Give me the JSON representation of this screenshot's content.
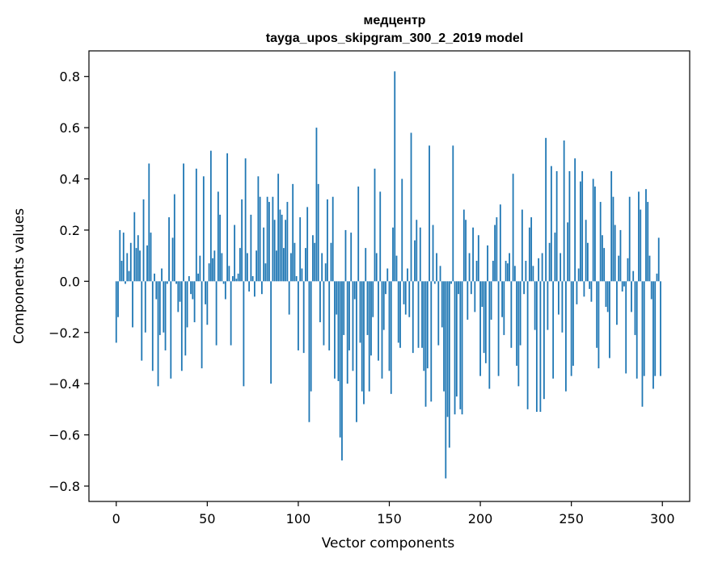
{
  "chart_data": {
    "type": "bar",
    "title": "медцентр",
    "subtitle": "tayga_upos_skipgram_300_2_2019 model",
    "xlabel": "Vector components",
    "ylabel": "Components values",
    "xlim": [
      -15,
      315
    ],
    "ylim": [
      -0.86,
      0.9
    ],
    "xticks": [
      0,
      50,
      100,
      150,
      200,
      250,
      300
    ],
    "xtick_labels": [
      "0",
      "50",
      "100",
      "150",
      "200",
      "250",
      "300"
    ],
    "yticks": [
      -0.8,
      -0.6,
      -0.4,
      -0.2,
      0.0,
      0.2,
      0.4,
      0.6,
      0.8
    ],
    "ytick_labels": [
      "−0.8",
      "−0.6",
      "−0.4",
      "−0.2",
      "0.0",
      "0.2",
      "0.4",
      "0.6",
      "0.8"
    ],
    "bar_color": "#1f77b4",
    "grid": false,
    "values": [
      -0.24,
      -0.14,
      0.2,
      0.08,
      0.19,
      -0.01,
      0.11,
      0.04,
      0.15,
      -0.18,
      0.27,
      0.13,
      0.18,
      0.12,
      -0.31,
      0.32,
      -0.2,
      0.14,
      0.46,
      0.19,
      -0.35,
      0.03,
      -0.07,
      -0.41,
      -0.21,
      0.05,
      -0.2,
      -0.27,
      -0.01,
      0.25,
      -0.38,
      0.17,
      0.34,
      -0.01,
      -0.12,
      -0.08,
      -0.35,
      0.46,
      -0.29,
      -0.18,
      0.02,
      -0.05,
      -0.07,
      -0.16,
      0.44,
      0.03,
      0.1,
      -0.34,
      0.41,
      -0.09,
      -0.17,
      0.07,
      0.51,
      0.09,
      0.12,
      -0.25,
      0.35,
      0.26,
      0.11,
      -0.01,
      -0.07,
      0.5,
      0.06,
      -0.25,
      0.02,
      0.22,
      0.01,
      0.03,
      0.13,
      0.32,
      -0.41,
      0.48,
      0.11,
      -0.04,
      0.26,
      0.02,
      -0.06,
      0.12,
      0.41,
      0.33,
      -0.05,
      0.21,
      0.07,
      0.33,
      0.31,
      -0.4,
      0.33,
      0.24,
      0.12,
      0.42,
      0.28,
      0.26,
      0.13,
      0.24,
      0.31,
      -0.13,
      0.11,
      0.38,
      0.15,
      0.02,
      -0.27,
      0.25,
      0.05,
      -0.28,
      0.13,
      0.29,
      -0.55,
      -0.43,
      0.18,
      0.15,
      0.6,
      0.38,
      -0.16,
      0.11,
      -0.25,
      0.07,
      0.32,
      -0.27,
      0.15,
      0.33,
      -0.38,
      -0.13,
      -0.39,
      -0.61,
      -0.7,
      -0.21,
      0.2,
      -0.4,
      -0.27,
      0.19,
      -0.35,
      -0.07,
      -0.55,
      0.37,
      -0.24,
      -0.43,
      -0.48,
      0.13,
      -0.21,
      -0.43,
      -0.29,
      -0.14,
      0.44,
      0.11,
      -0.31,
      0.35,
      -0.38,
      -0.19,
      -0.05,
      0.05,
      -0.35,
      -0.44,
      0.21,
      0.82,
      0.1,
      -0.24,
      -0.26,
      0.4,
      -0.09,
      -0.13,
      0.05,
      -0.14,
      0.58,
      -0.28,
      0.16,
      0.24,
      -0.26,
      0.21,
      -0.26,
      -0.35,
      -0.49,
      -0.34,
      0.53,
      -0.47,
      0.22,
      -0.01,
      0.11,
      -0.25,
      0.06,
      -0.18,
      -0.43,
      -0.77,
      -0.53,
      -0.65,
      -0.01,
      0.53,
      -0.52,
      -0.45,
      -0.05,
      -0.5,
      -0.52,
      0.28,
      0.24,
      -0.15,
      0.11,
      -0.05,
      0.21,
      -0.12,
      0.08,
      0.18,
      -0.37,
      -0.1,
      -0.28,
      -0.32,
      0.14,
      -0.42,
      -0.15,
      0.08,
      0.22,
      0.25,
      -0.37,
      0.3,
      -0.14,
      -0.21,
      0.08,
      0.07,
      0.11,
      -0.26,
      0.42,
      0.06,
      -0.33,
      -0.41,
      -0.25,
      0.28,
      -0.05,
      0.08,
      -0.5,
      0.21,
      0.25,
      0.06,
      -0.19,
      -0.51,
      0.09,
      -0.51,
      0.11,
      -0.46,
      0.56,
      -0.19,
      0.15,
      0.45,
      -0.38,
      0.19,
      0.43,
      -0.13,
      0.11,
      -0.2,
      0.55,
      -0.43,
      0.23,
      0.43,
      -0.37,
      -0.33,
      0.48,
      -0.09,
      0.05,
      0.39,
      0.43,
      -0.06,
      0.24,
      0.15,
      -0.03,
      -0.08,
      0.4,
      0.37,
      -0.26,
      -0.34,
      0.31,
      0.18,
      0.13,
      -0.1,
      -0.12,
      -0.3,
      0.43,
      0.33,
      0.22,
      -0.17,
      0.1,
      0.2,
      -0.04,
      -0.02,
      -0.36,
      0.09,
      0.33,
      -0.12,
      0.04,
      -0.21,
      -0.38,
      0.35,
      0.28,
      -0.49,
      -0.37,
      0.36,
      0.31,
      0.1,
      -0.07,
      -0.42,
      -0.37,
      0.03,
      0.17,
      -0.37
    ]
  }
}
